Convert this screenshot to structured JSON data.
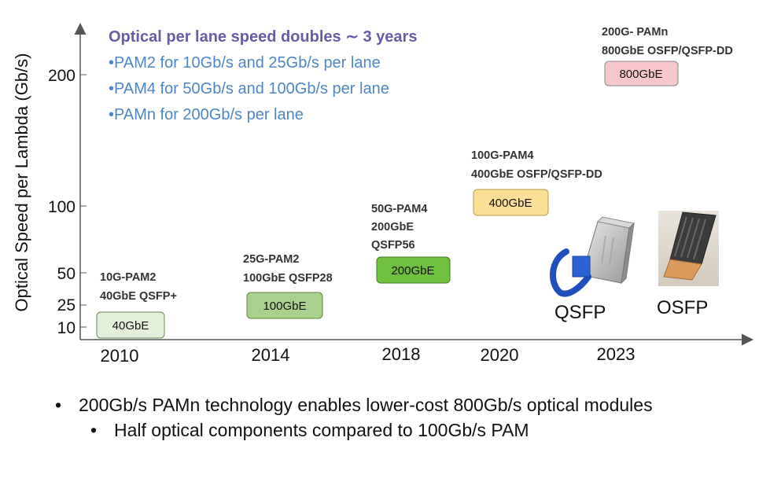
{
  "chart_data": {
    "type": "scatter",
    "ylabel": "Optical Speed per Lambda (Gb/s)",
    "y_ticks": [
      "200",
      "100",
      "50",
      "25",
      "10"
    ],
    "x_ticks": [
      "2010",
      "2014",
      "2018",
      "2020",
      "2023"
    ],
    "headline": "Optical per lane speed doubles ∼ 3 years",
    "bullets": [
      "•PAM2 for 10Gb/s and 25Gb/s per lane",
      "•PAM4 for 50Gb/s and 100Gb/s per lane",
      "•PAMn for 200Gb/s per lane"
    ],
    "points": [
      {
        "year": "2010",
        "speed": 10,
        "box": "40GbE",
        "anno": [
          "10G-PAM2",
          "40GbE QSFP+"
        ],
        "color": "#e3efd9"
      },
      {
        "year": "2014",
        "speed": 25,
        "box": "100GbE",
        "anno": [
          "25G-PAM2",
          "100GbE QSFP28"
        ],
        "color": "#a9d18e"
      },
      {
        "year": "2018",
        "speed": 50,
        "box": "200GbE",
        "anno": [
          "50G-PAM4",
          "200GbE",
          "QSFP56"
        ],
        "color": "#70c040"
      },
      {
        "year": "2020",
        "speed": 100,
        "box": "400GbE",
        "anno": [
          "100G-PAM4",
          "400GbE OSFP/QSFP-DD"
        ],
        "color": "#fbdf97"
      },
      {
        "year": "2023",
        "speed": 200,
        "box": "800GbE",
        "anno": [
          "200G- PAMn",
          "800GbE OSFP/QSFP-DD"
        ],
        "color": "#f7c7cc"
      }
    ],
    "modules": [
      "QSFP",
      "OSFP"
    ]
  },
  "notes": [
    "200Gb/s PAMn technology enables lower-cost 800Gb/s optical modules",
    "Half optical components compared to 100Gb/s PAM"
  ],
  "bullet_glyph": "•"
}
